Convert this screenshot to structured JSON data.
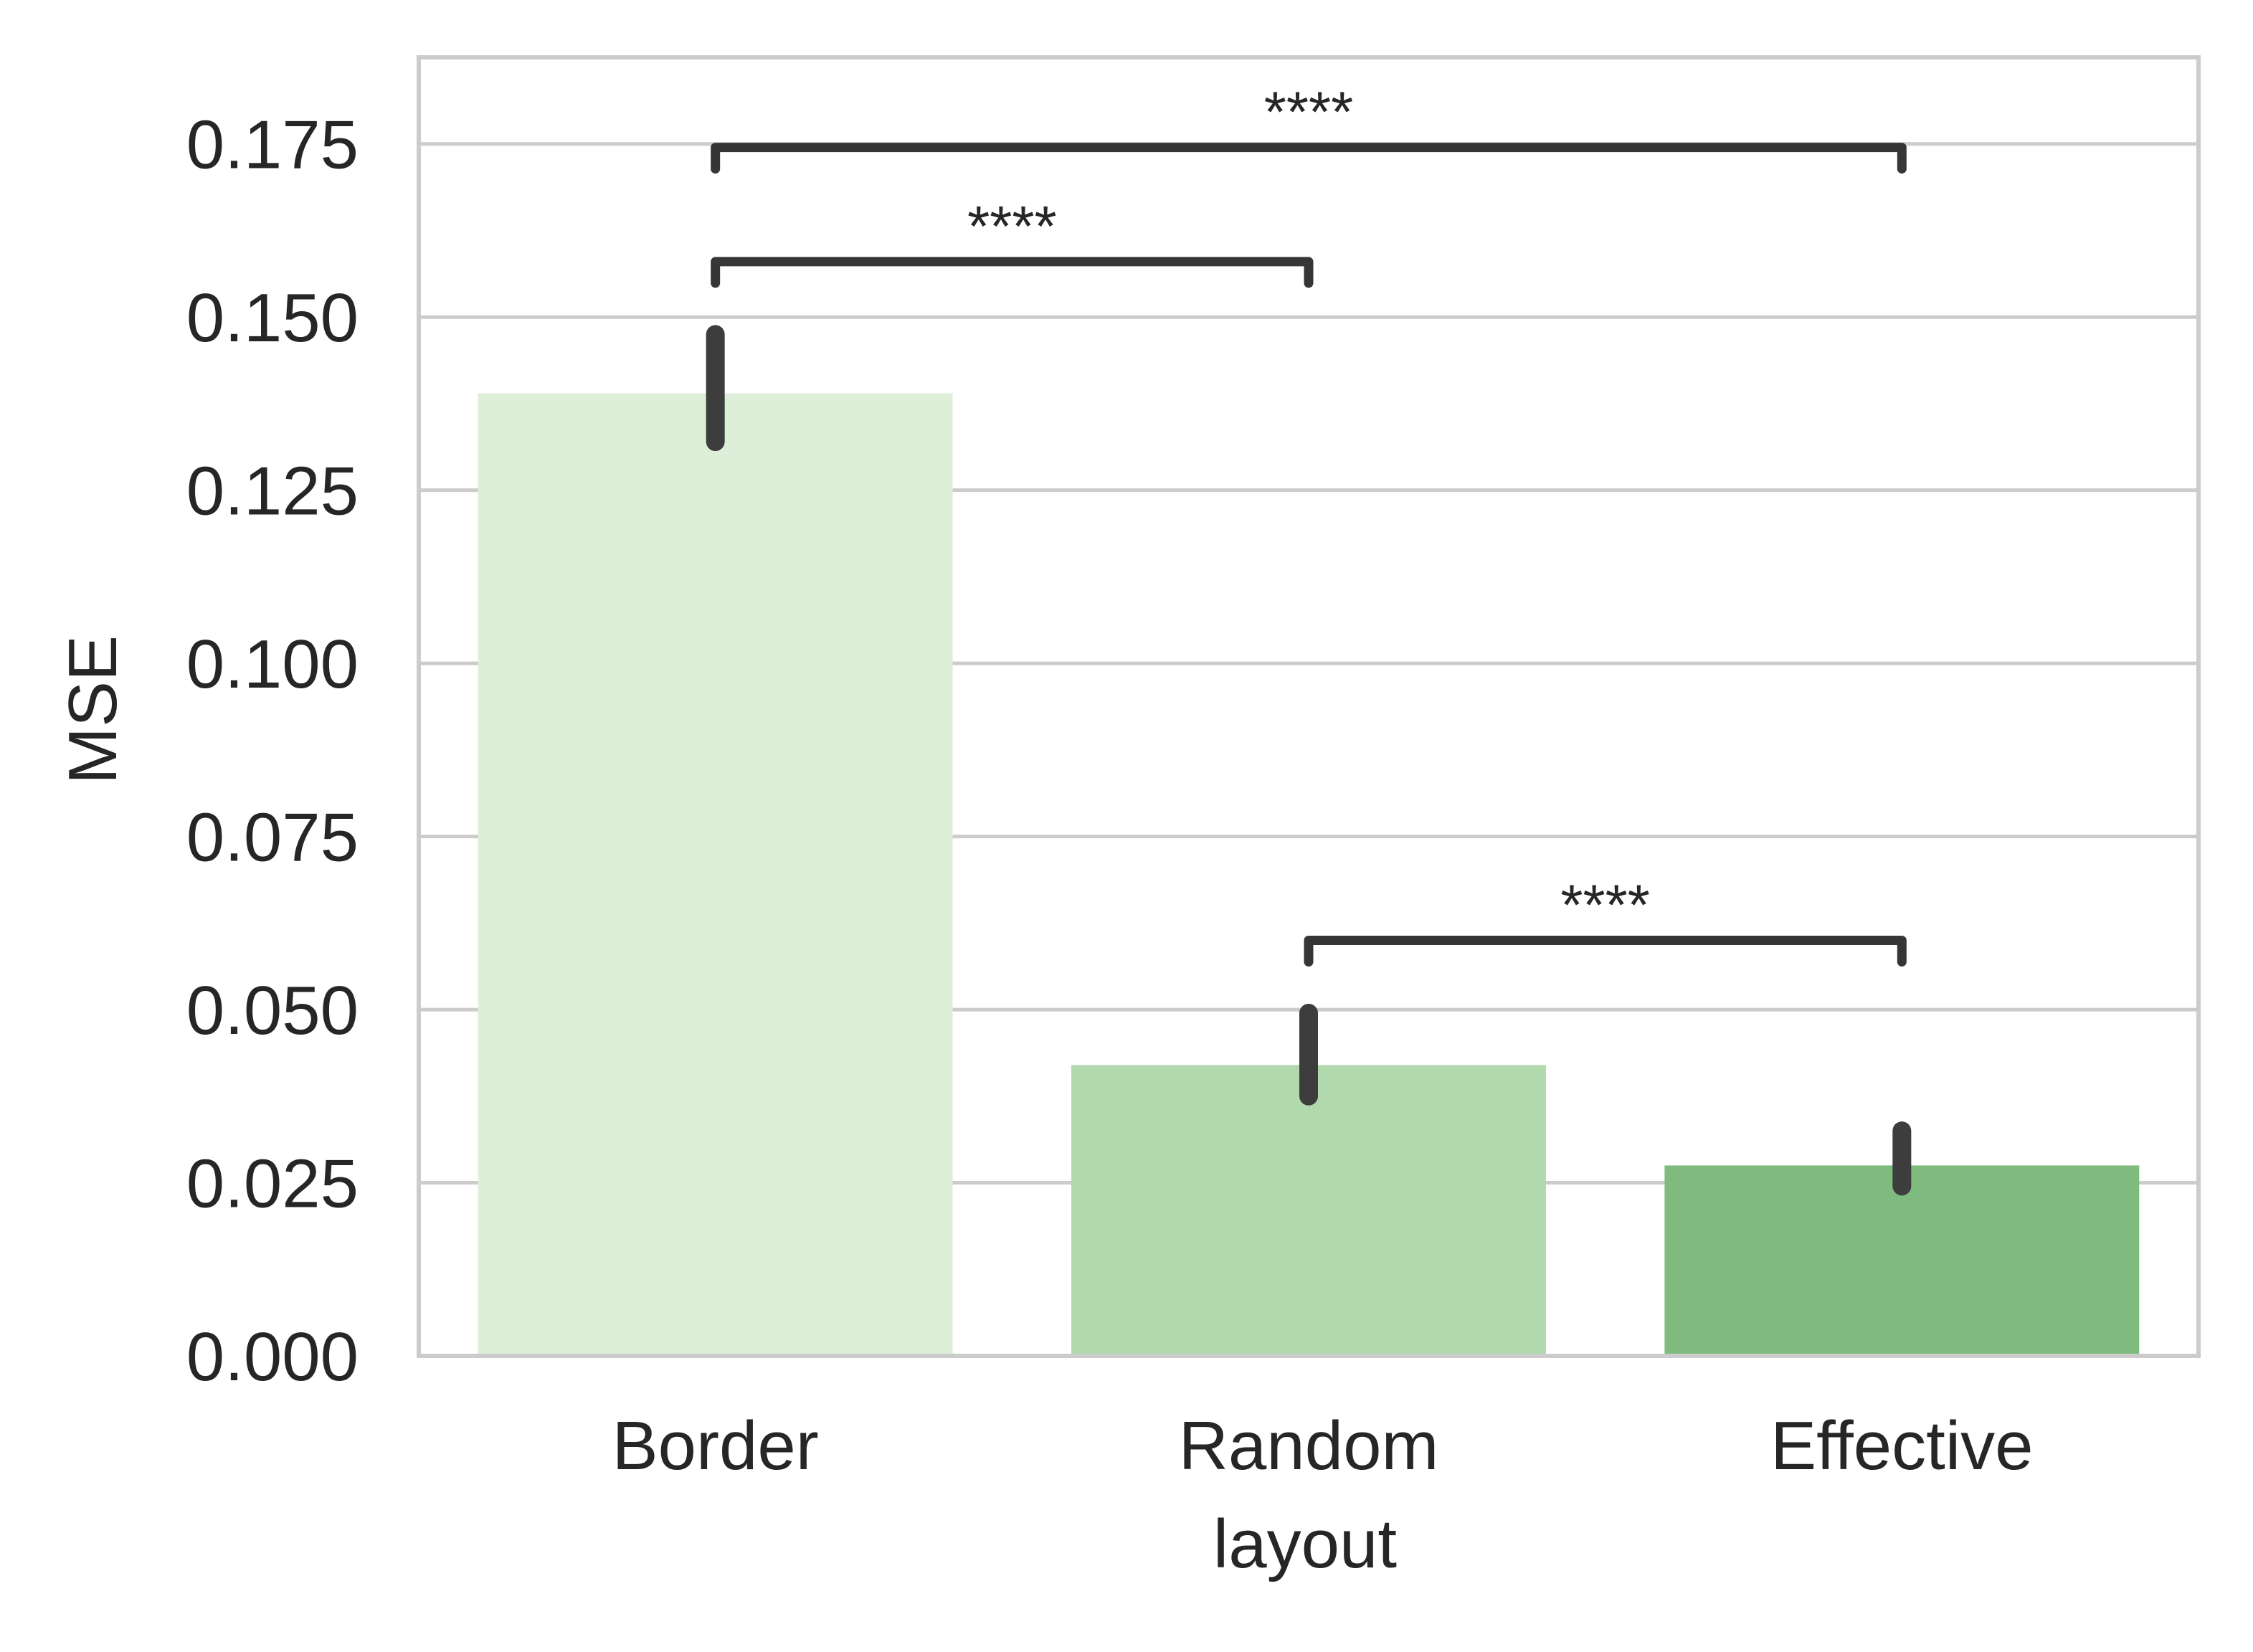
{
  "chart_data": {
    "type": "bar",
    "title": "",
    "xlabel": "layout",
    "ylabel": "MSE",
    "categories": [
      "Border",
      "Random",
      "Effective"
    ],
    "values": [
      0.139,
      0.042,
      0.0275
    ],
    "error_bars": [
      {
        "low": 0.132,
        "high": 0.1475
      },
      {
        "low": 0.0375,
        "high": 0.0495
      },
      {
        "low": 0.0245,
        "high": 0.0325
      }
    ],
    "bar_colors": [
      "#ddefd9",
      "#b2d8ae",
      "#7fbb7e"
    ],
    "ylim": [
      0,
      0.1875
    ],
    "yticks": [
      0.0,
      0.025,
      0.05,
      0.075,
      0.1,
      0.125,
      0.15,
      0.175
    ],
    "ytick_labels": [
      "0.000",
      "0.025",
      "0.050",
      "0.075",
      "0.100",
      "0.125",
      "0.150",
      "0.175"
    ],
    "grid": true,
    "significance": [
      {
        "from": 0,
        "to": 1,
        "y": 0.158,
        "label": "****"
      },
      {
        "from": 0,
        "to": 2,
        "y": 0.1745,
        "label": "****"
      },
      {
        "from": 1,
        "to": 2,
        "y": 0.06,
        "label": "****"
      }
    ],
    "colors": {
      "grid": "#cccccc",
      "spine": "#cccccc",
      "errorbar": "#3d3d3d",
      "bracket": "#363636",
      "text": "#262626"
    }
  }
}
